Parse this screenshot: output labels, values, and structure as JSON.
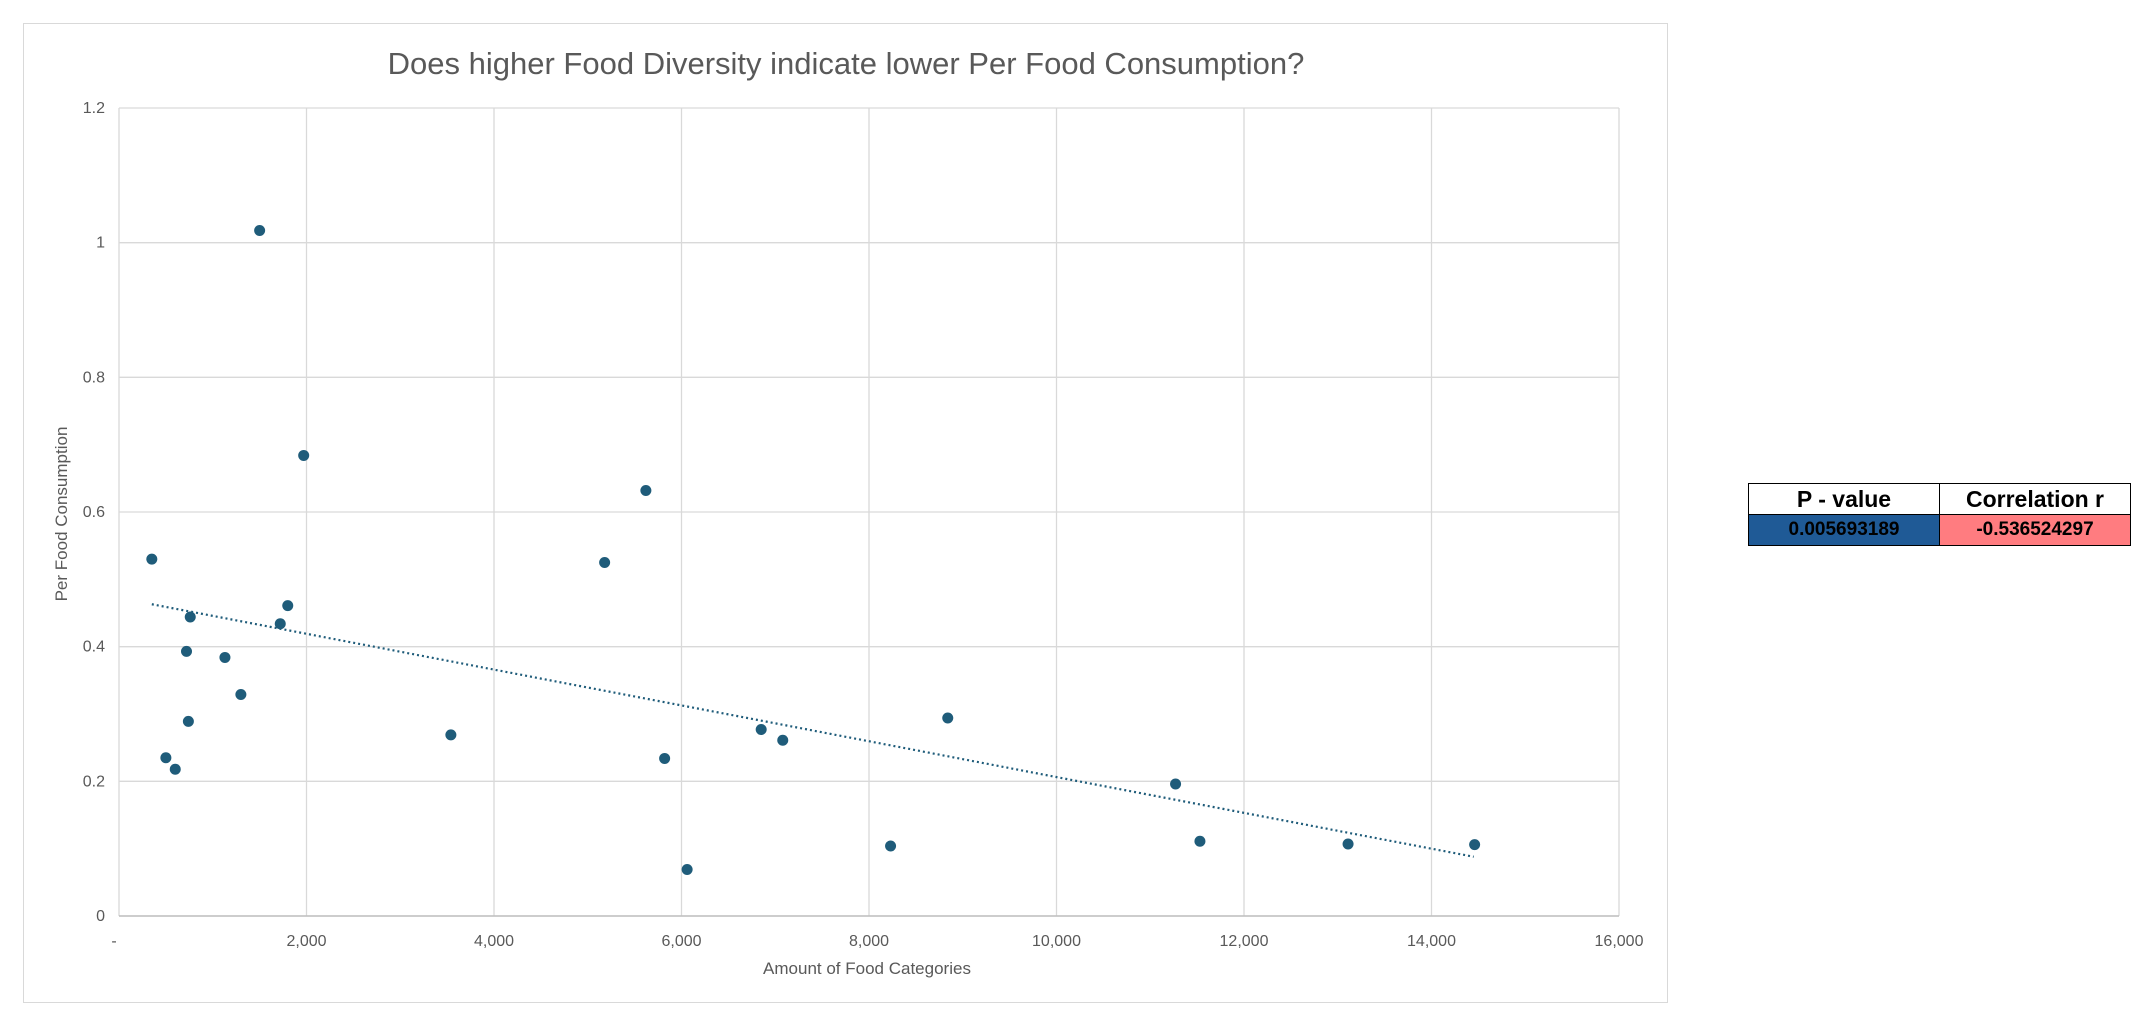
{
  "chart_data": {
    "type": "scatter",
    "title": "Does higher Food Diversity indicate lower Per Food Consumption?",
    "xlabel": "Amount of Food Categories",
    "ylabel": "Per Food Consumption",
    "xlim": [
      0,
      16000
    ],
    "ylim": [
      0,
      1.2
    ],
    "x_ticks": [
      0,
      2000,
      4000,
      6000,
      8000,
      10000,
      12000,
      14000,
      16000
    ],
    "x_tick_labels": [
      "-",
      "2,000",
      "4,000",
      "6,000",
      "8,000",
      "10,000",
      "12,000",
      "14,000",
      "16,000"
    ],
    "y_ticks": [
      0,
      0.2,
      0.4,
      0.6,
      0.8,
      1,
      1.2
    ],
    "y_tick_labels": [
      "0",
      "0.2",
      "0.4",
      "0.6",
      "0.8",
      "1",
      "1.2"
    ],
    "grid": true,
    "legend": "none",
    "marker_color": "#1f5c7a",
    "trendline": {
      "type": "linear",
      "style": "dotted",
      "color": "#1f5c7a",
      "x": [
        350,
        14450
      ],
      "y": [
        0.463,
        0.088
      ]
    },
    "points": [
      {
        "x": 350,
        "y": 0.53
      },
      {
        "x": 500,
        "y": 0.235
      },
      {
        "x": 600,
        "y": 0.218
      },
      {
        "x": 720,
        "y": 0.393
      },
      {
        "x": 740,
        "y": 0.289
      },
      {
        "x": 760,
        "y": 0.444
      },
      {
        "x": 1130,
        "y": 0.384
      },
      {
        "x": 1300,
        "y": 0.329
      },
      {
        "x": 1500,
        "y": 1.018
      },
      {
        "x": 1720,
        "y": 0.434
      },
      {
        "x": 1800,
        "y": 0.461
      },
      {
        "x": 1970,
        "y": 0.684
      },
      {
        "x": 3540,
        "y": 0.269
      },
      {
        "x": 5180,
        "y": 0.525
      },
      {
        "x": 5620,
        "y": 0.632
      },
      {
        "x": 5820,
        "y": 0.234
      },
      {
        "x": 6060,
        "y": 0.069
      },
      {
        "x": 6850,
        "y": 0.277
      },
      {
        "x": 7080,
        "y": 0.261
      },
      {
        "x": 8230,
        "y": 0.104
      },
      {
        "x": 8840,
        "y": 0.294
      },
      {
        "x": 11270,
        "y": 0.196
      },
      {
        "x": 11530,
        "y": 0.111
      },
      {
        "x": 13110,
        "y": 0.107
      },
      {
        "x": 14460,
        "y": 0.106
      }
    ]
  },
  "stats_table": {
    "pvalue_header": "P - value",
    "corr_header": "Correlation r",
    "pvalue": "0.005693189",
    "corr": "-0.536524297",
    "pvalue_color": "#1f5a96",
    "corr_color": "#ff7c80"
  }
}
